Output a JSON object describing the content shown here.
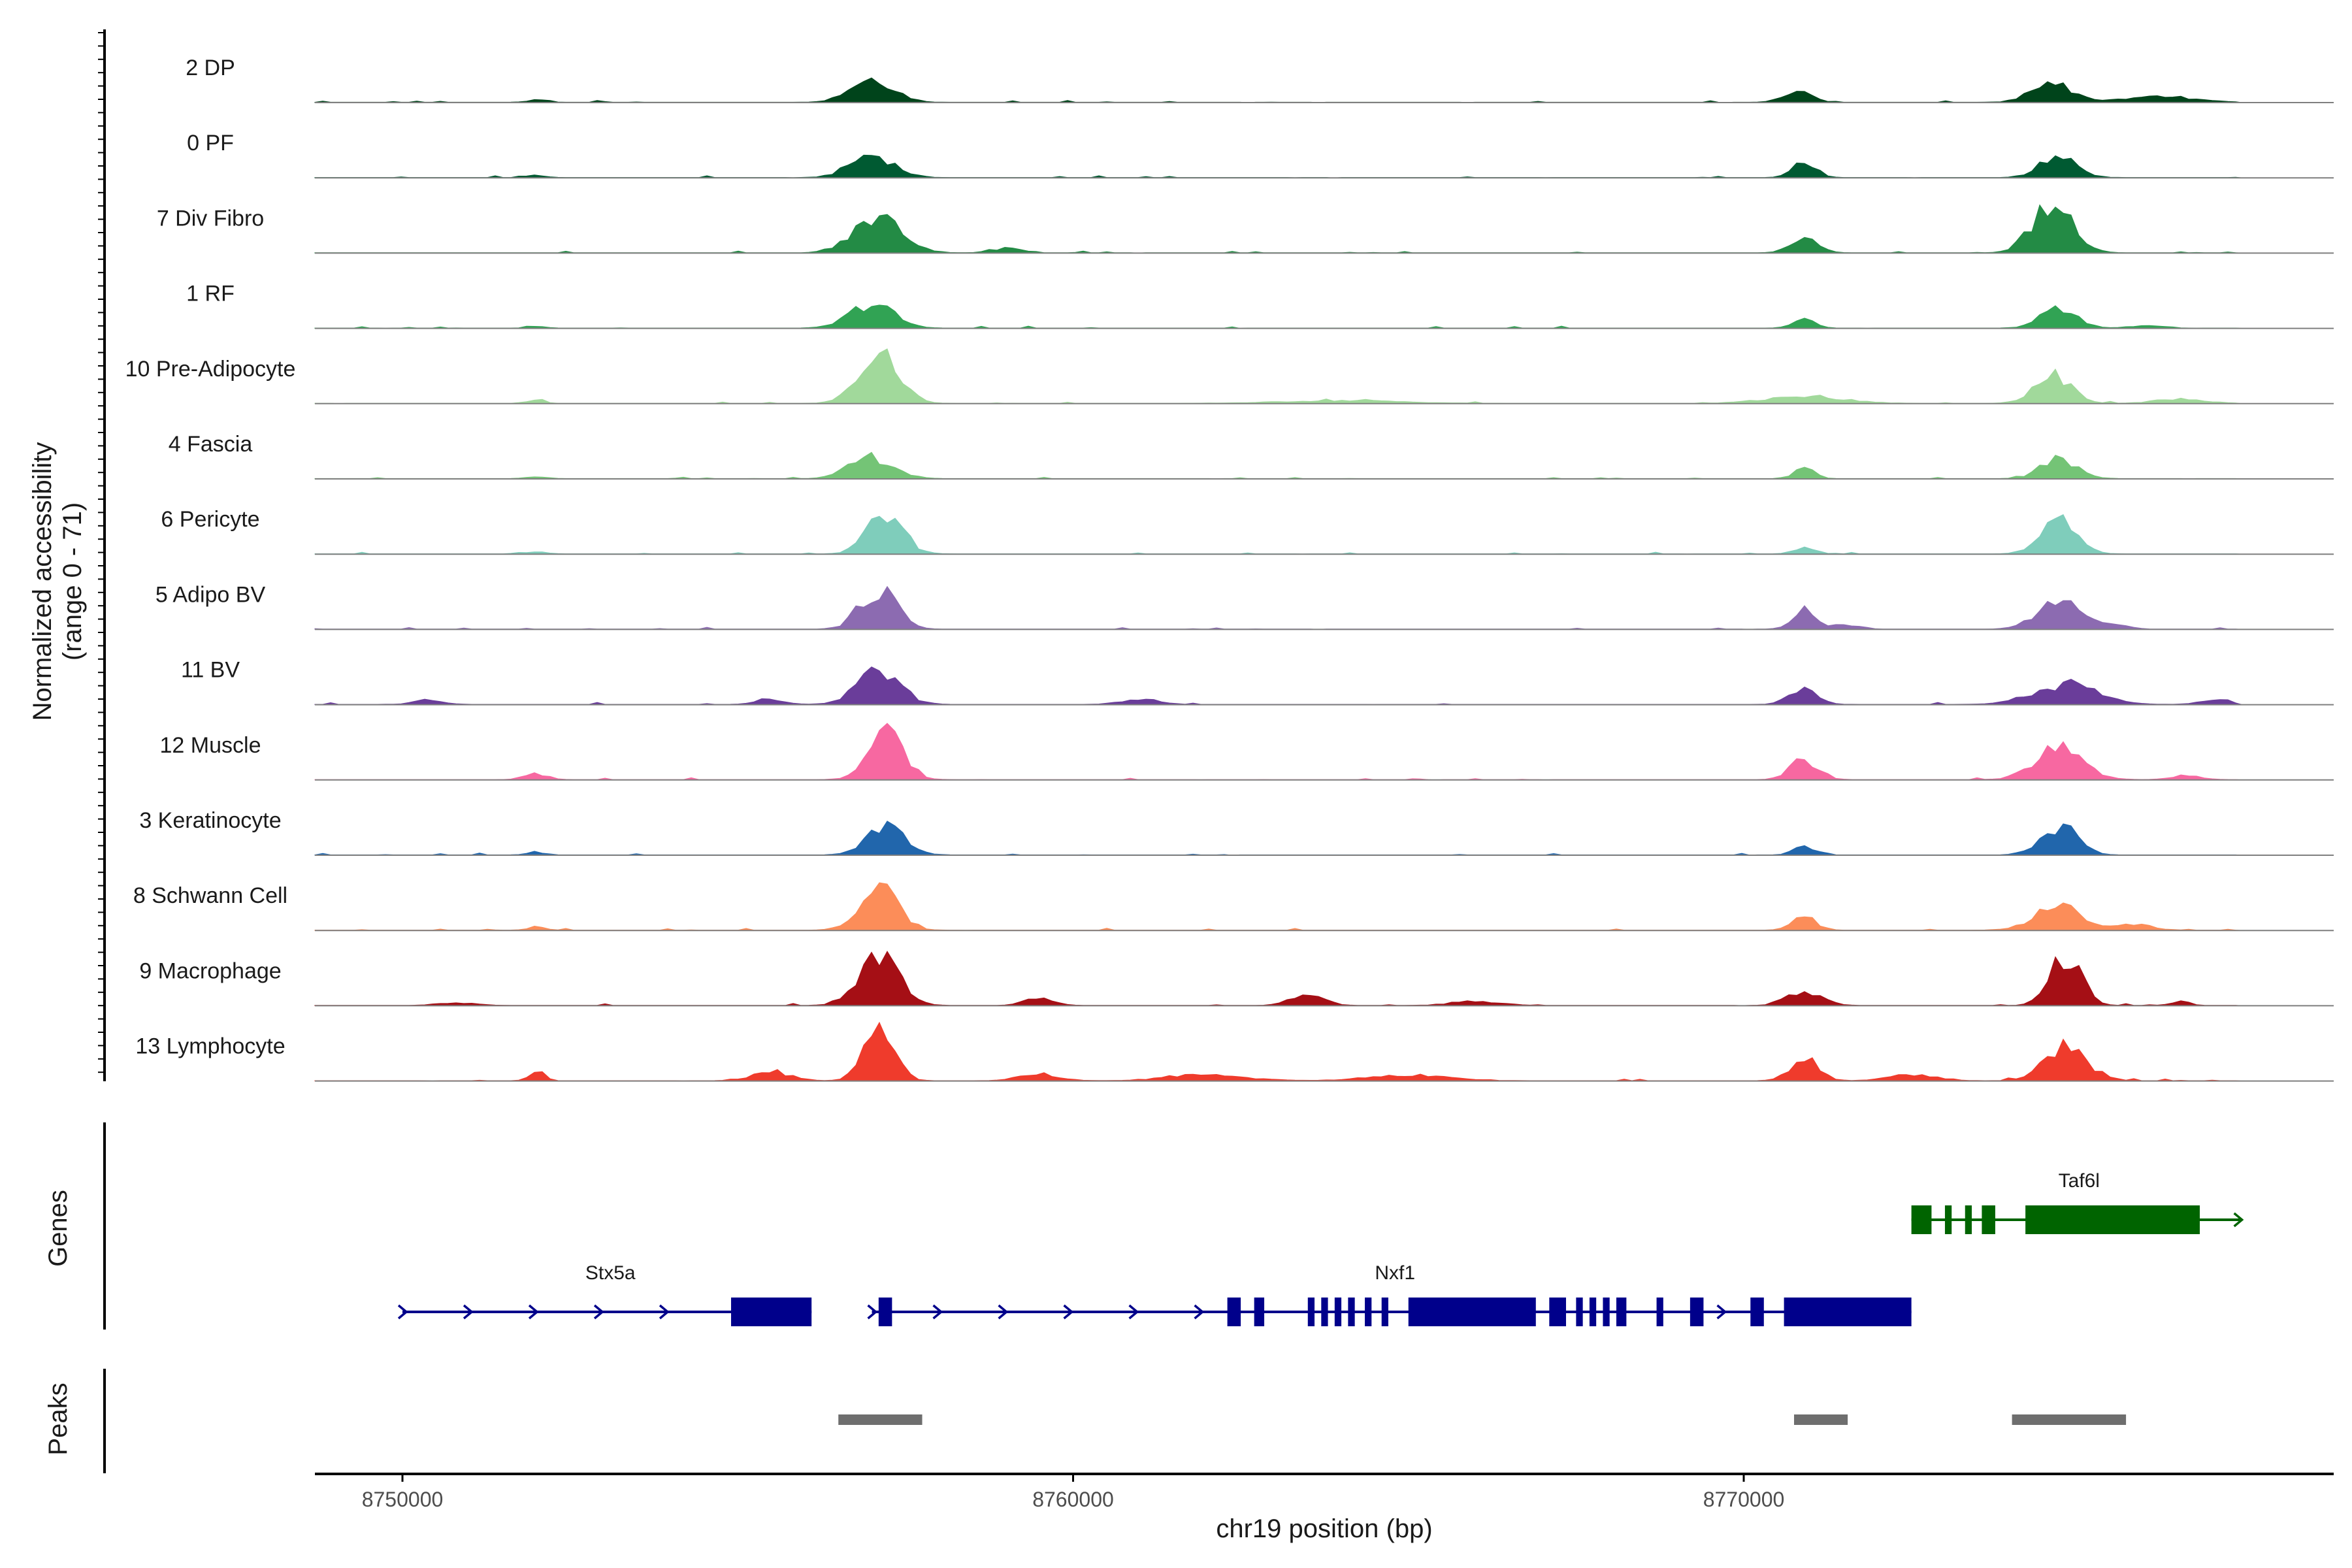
{
  "chart_data": {
    "type": "area",
    "title": "",
    "xlabel": "chr19 position (bp)",
    "ylabel": "Normalized accessibility\n(range 0 - 71)",
    "ylabel_lines": [
      "Normalized accessibility",
      "(range 0 - 71)"
    ],
    "ylim": [
      0,
      71
    ],
    "xlim": [
      8748700,
      8778900
    ],
    "x_ticks": [
      8750000,
      8760000,
      8770000
    ],
    "x_tick_labels": [
      "8750000",
      "8760000",
      "8770000"
    ],
    "tracks": [
      {
        "name": "2 DP",
        "color": "#00441b",
        "peaks": [
          [
            8752000,
            3,
            200
          ],
          [
            8757000,
            34,
            450
          ],
          [
            8770800,
            14,
            300
          ],
          [
            8774600,
            26,
            420
          ],
          [
            8776200,
            8,
            700
          ]
        ]
      },
      {
        "name": "0 PF",
        "color": "#005a32",
        "peaks": [
          [
            8752000,
            3,
            200
          ],
          [
            8757000,
            32,
            450
          ],
          [
            8770900,
            20,
            250
          ],
          [
            8774700,
            30,
            380
          ]
        ]
      },
      {
        "name": "7 Div Fibro",
        "color": "#238b45",
        "peaks": [
          [
            8757100,
            50,
            500
          ],
          [
            8759000,
            6,
            300
          ],
          [
            8770900,
            18,
            300
          ],
          [
            8774600,
            66,
            420
          ]
        ]
      },
      {
        "name": "1 RF",
        "color": "#31a354",
        "peaks": [
          [
            8752000,
            2,
            200
          ],
          [
            8757000,
            34,
            450
          ],
          [
            8770900,
            14,
            220
          ],
          [
            8774700,
            26,
            380
          ],
          [
            8776000,
            4,
            300
          ]
        ]
      },
      {
        "name": "10 Pre-Adipocyte",
        "color": "#a1d99b",
        "peaks": [
          [
            8752000,
            6,
            150
          ],
          [
            8757100,
            68,
            420
          ],
          [
            8764000,
            4,
            1200
          ],
          [
            8770900,
            10,
            800
          ],
          [
            8774600,
            40,
            380
          ],
          [
            8776500,
            6,
            500
          ]
        ]
      },
      {
        "name": "4 Fascia",
        "color": "#74c476",
        "peaks": [
          [
            8752000,
            3,
            200
          ],
          [
            8757000,
            30,
            450
          ],
          [
            8770900,
            14,
            220
          ],
          [
            8774700,
            26,
            380
          ]
        ]
      },
      {
        "name": "6 Pericyte",
        "color": "#7fcdbb",
        "peaks": [
          [
            8752000,
            3,
            200
          ],
          [
            8757200,
            52,
            380
          ],
          [
            8770900,
            10,
            220
          ],
          [
            8774700,
            46,
            380
          ]
        ]
      },
      {
        "name": "5 Adipo BV",
        "color": "#8c6bb1",
        "peaks": [
          [
            8757100,
            56,
            380
          ],
          [
            8770900,
            26,
            250
          ],
          [
            8771500,
            6,
            300
          ],
          [
            8774700,
            36,
            450
          ],
          [
            8775500,
            6,
            300
          ]
        ]
      },
      {
        "name": "11 BV",
        "color": "#6a3d9a",
        "peaks": [
          [
            8750400,
            6,
            300
          ],
          [
            8755500,
            6,
            300
          ],
          [
            8757100,
            44,
            450
          ],
          [
            8761000,
            6,
            400
          ],
          [
            8770900,
            20,
            300
          ],
          [
            8774800,
            28,
            650
          ],
          [
            8777000,
            6,
            300
          ]
        ]
      },
      {
        "name": "12 Muscle",
        "color": "#f768a1",
        "peaks": [
          [
            8752000,
            8,
            250
          ],
          [
            8757200,
            62,
            380
          ],
          [
            8770900,
            28,
            300
          ],
          [
            8774700,
            42,
            500
          ],
          [
            8776600,
            6,
            300
          ]
        ]
      },
      {
        "name": "3 Keratinocyte",
        "color": "#2166ac",
        "peaks": [
          [
            8752000,
            3,
            200
          ],
          [
            8757200,
            40,
            400
          ],
          [
            8770900,
            12,
            220
          ],
          [
            8774700,
            40,
            380
          ]
        ]
      },
      {
        "name": "8 Schwann Cell",
        "color": "#fc8d59",
        "peaks": [
          [
            8752000,
            4,
            200
          ],
          [
            8757100,
            56,
            400
          ],
          [
            8770900,
            20,
            250
          ],
          [
            8774700,
            34,
            500
          ],
          [
            8775800,
            8,
            400
          ]
        ]
      },
      {
        "name": "9 Macrophage",
        "color": "#a50f15",
        "peaks": [
          [
            8750800,
            4,
            400
          ],
          [
            8757100,
            70,
            420
          ],
          [
            8759500,
            10,
            300
          ],
          [
            8763500,
            14,
            350
          ],
          [
            8766000,
            6,
            500
          ],
          [
            8770900,
            22,
            350
          ],
          [
            8774800,
            71,
            320
          ],
          [
            8776500,
            6,
            200
          ]
        ]
      },
      {
        "name": "13 Lymphocyte",
        "color": "#ef3b2c",
        "peaks": [
          [
            8752000,
            14,
            150
          ],
          [
            8755500,
            12,
            400
          ],
          [
            8757100,
            71,
            320
          ],
          [
            8759500,
            10,
            400
          ],
          [
            8762000,
            8,
            800
          ],
          [
            8765000,
            8,
            800
          ],
          [
            8770900,
            30,
            300
          ],
          [
            8772500,
            8,
            500
          ],
          [
            8774800,
            46,
            450
          ],
          [
            8777700,
            10,
            150
          ]
        ]
      }
    ],
    "genes": [
      {
        "name": "Stx5a",
        "strand": "+",
        "color": "#00008b",
        "start": 8750000,
        "end": 8756100,
        "row": 2,
        "label_pos": 8753100,
        "exons": [
          [
            8754900,
            8756100
          ]
        ]
      },
      {
        "name": "Nxf1",
        "strand": "+",
        "color": "#00008b",
        "start": 8757000,
        "end": 8772500,
        "row": 2,
        "label_pos": 8764800,
        "exons": [
          [
            8757100,
            8757300
          ],
          [
            8762300,
            8762500
          ],
          [
            8762700,
            8762850
          ],
          [
            8763500,
            8763600
          ],
          [
            8763700,
            8763800
          ],
          [
            8763900,
            8764000
          ],
          [
            8764100,
            8764200
          ],
          [
            8764350,
            8764450
          ],
          [
            8764600,
            8764700
          ],
          [
            8765000,
            8766900
          ],
          [
            8767100,
            8767350
          ],
          [
            8767500,
            8767600
          ],
          [
            8767700,
            8767800
          ],
          [
            8767900,
            8768000
          ],
          [
            8768100,
            8768250
          ],
          [
            8768700,
            8768800
          ],
          [
            8769200,
            8769400
          ],
          [
            8770100,
            8770300
          ],
          [
            8770600,
            8772500
          ]
        ]
      },
      {
        "name": "Taf6l",
        "strand": "+",
        "color": "#006400",
        "start": 8772500,
        "end": 8777400,
        "row": 1,
        "label_pos": 8775000,
        "exons": [
          [
            8772500,
            8772800
          ],
          [
            8773000,
            8773100
          ],
          [
            8773300,
            8773400
          ],
          [
            8773550,
            8773750
          ],
          [
            8774200,
            8776800
          ]
        ]
      }
    ],
    "called_peaks": [
      [
        8756500,
        8757750
      ],
      [
        8770750,
        8771550
      ],
      [
        8774000,
        8775700
      ]
    ],
    "panels": [
      "Normalized accessibility (range 0 - 71)",
      "Genes",
      "Peaks"
    ],
    "panel_titles": {
      "genes": "Genes",
      "peaks": "Peaks"
    },
    "colors": {
      "axis": "#000000",
      "baseline": "#7f7f7f",
      "peak_bar": "#6e6e6e",
      "tick_text": "#4d4d4d"
    }
  }
}
